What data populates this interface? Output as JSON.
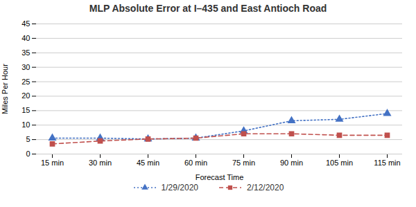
{
  "chart_data": {
    "type": "line",
    "title": "MLP Absolute Error at I–435 and East Antioch Road",
    "xlabel": "Forecast Time",
    "ylabel": "Miles Per Hour",
    "categories": [
      "15 min",
      "30 min",
      "45 min",
      "60 min",
      "75 min",
      "90 min",
      "105 min",
      "115 min"
    ],
    "series": [
      {
        "name": "1/29/2020",
        "color": "#4472C4",
        "marker": "triangle",
        "line_style": "dotted",
        "values": [
          5.5,
          5.5,
          5.2,
          5.5,
          8.0,
          11.5,
          12.0,
          14.0
        ]
      },
      {
        "name": "2/12/2020",
        "color": "#C0504D",
        "marker": "square",
        "line_style": "dashed",
        "values": [
          3.5,
          4.5,
          5.2,
          5.5,
          7.0,
          7.0,
          6.5,
          6.5
        ]
      }
    ],
    "ylim": [
      0,
      45
    ],
    "yticks": [
      0,
      5,
      10,
      15,
      20,
      25,
      30,
      35,
      40,
      45
    ],
    "grid": true,
    "legend": "bottom"
  }
}
